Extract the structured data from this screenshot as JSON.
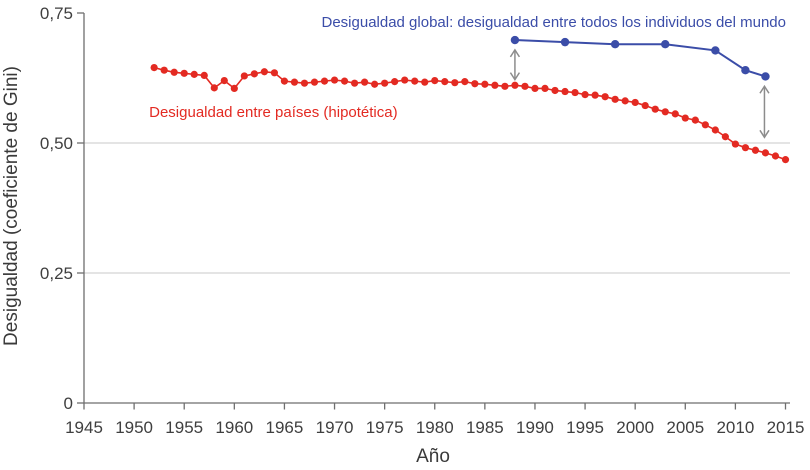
{
  "page": {
    "background": "#ffffff"
  },
  "chart_data": {
    "type": "line",
    "title": "",
    "xlabel": "Año",
    "ylabel": "Desigualdad (coeficiente de Gini)",
    "xlim": [
      1945,
      2015
    ],
    "ylim": [
      0,
      0.75
    ],
    "grid": "horizontal (only at 0,25 and 0,50)",
    "legend_position": "inline-annotations",
    "axis_color": "#6e6e6e",
    "text_color": "#3f3f3f",
    "gridline_color": "#c9c9c9",
    "x_ticks": [
      1945,
      1950,
      1955,
      1960,
      1965,
      1970,
      1975,
      1980,
      1985,
      1990,
      1995,
      2000,
      2005,
      2010,
      2015
    ],
    "y_ticks": [
      {
        "value": 0,
        "label": "0"
      },
      {
        "value": 0.25,
        "label": "0,25"
      },
      {
        "value": 0.5,
        "label": "0,50"
      },
      {
        "value": 0.75,
        "label": "0,75"
      }
    ],
    "gridline_values": [
      0.25,
      0.5
    ],
    "series": [
      {
        "name": "Desigualdad entre países (hipotética)",
        "color": "#e32a22",
        "marker": "circle",
        "x": [
          1952,
          1953,
          1954,
          1955,
          1956,
          1957,
          1958,
          1959,
          1960,
          1961,
          1962,
          1963,
          1964,
          1965,
          1966,
          1967,
          1968,
          1969,
          1970,
          1971,
          1972,
          1973,
          1974,
          1975,
          1976,
          1977,
          1978,
          1979,
          1980,
          1981,
          1982,
          1983,
          1984,
          1985,
          1986,
          1987,
          1988,
          1989,
          1990,
          1991,
          1992,
          1993,
          1994,
          1995,
          1996,
          1997,
          1998,
          1999,
          2000,
          2001,
          2002,
          2003,
          2004,
          2005,
          2006,
          2007,
          2008,
          2009,
          2010,
          2011,
          2012,
          2013,
          2014,
          2015
        ],
        "y": [
          0.645,
          0.64,
          0.636,
          0.634,
          0.632,
          0.63,
          0.606,
          0.62,
          0.605,
          0.629,
          0.633,
          0.637,
          0.635,
          0.619,
          0.617,
          0.615,
          0.617,
          0.619,
          0.621,
          0.619,
          0.615,
          0.617,
          0.613,
          0.615,
          0.618,
          0.621,
          0.619,
          0.617,
          0.62,
          0.618,
          0.616,
          0.618,
          0.614,
          0.613,
          0.611,
          0.609,
          0.611,
          0.609,
          0.605,
          0.605,
          0.601,
          0.599,
          0.597,
          0.593,
          0.592,
          0.589,
          0.584,
          0.581,
          0.578,
          0.572,
          0.565,
          0.56,
          0.556,
          0.548,
          0.544,
          0.535,
          0.525,
          0.512,
          0.498,
          0.491,
          0.486,
          0.481,
          0.475,
          0.468
        ]
      },
      {
        "name": "Desigualdad global: desigualdad entre todos los individuos del mundo",
        "color": "#3b4da8",
        "marker": "circle",
        "x": [
          1988,
          1993,
          1998,
          2003,
          2008,
          2011,
          2013
        ],
        "y": [
          0.698,
          0.694,
          0.69,
          0.69,
          0.678,
          0.64,
          0.628
        ]
      }
    ],
    "annotations": {
      "labels": [
        {
          "id": "global",
          "text": "Desigualdad global: desigualdad entre todos los individuos del mundo",
          "x": 1968.7,
          "y": 0.723,
          "color": "#3b4da8",
          "anchor": "start"
        },
        {
          "id": "between",
          "text": "Desigualdad entre países (hipotética)",
          "x": 1951.5,
          "y": 0.55,
          "color": "#e32a22",
          "anchor": "start"
        }
      ],
      "arrows": [
        {
          "x": 1988,
          "y_from": 0.62,
          "y_to": 0.681,
          "color": "#8c8c8c"
        },
        {
          "x": 2012.9,
          "y_from": 0.509,
          "y_to": 0.611,
          "color": "#8c8c8c"
        }
      ]
    }
  }
}
